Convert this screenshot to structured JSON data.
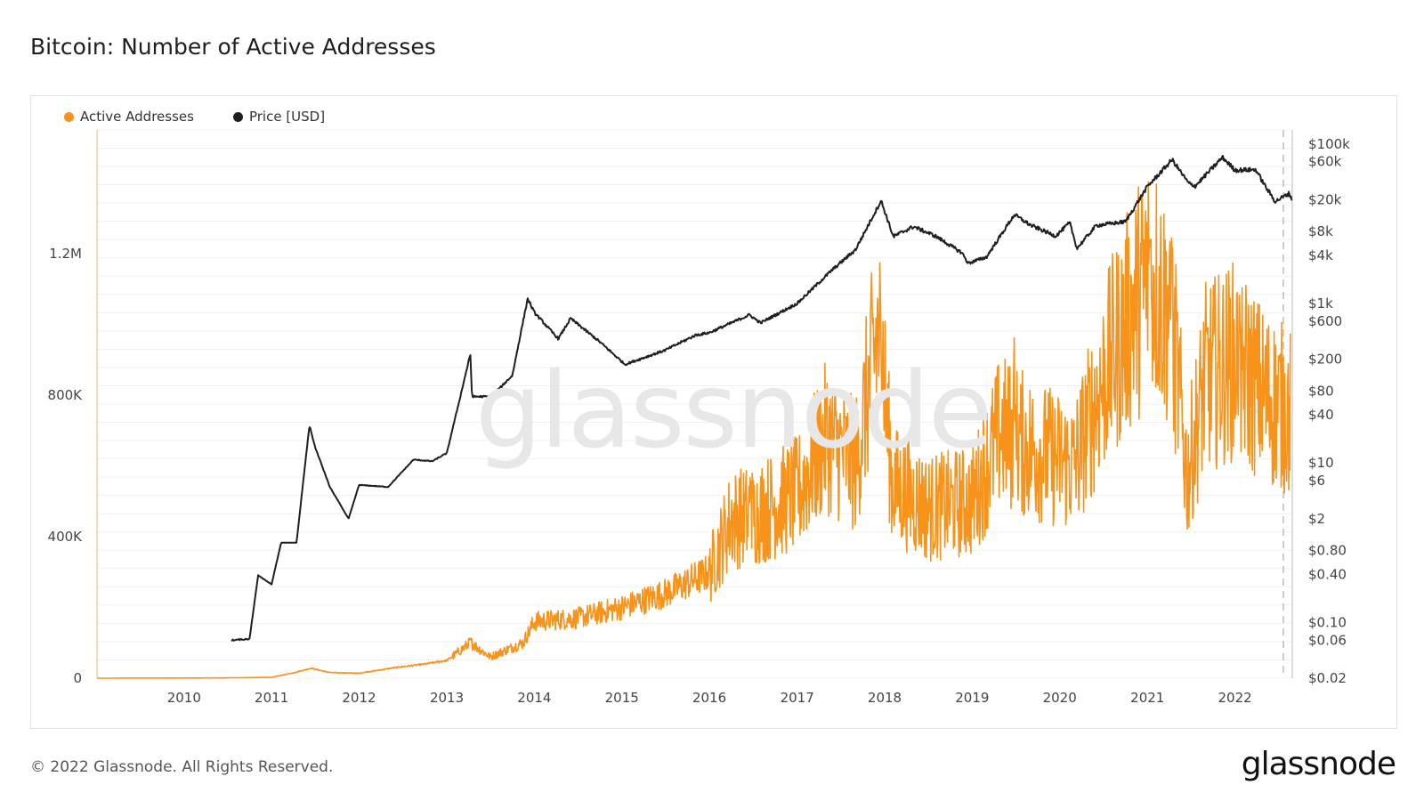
{
  "header": {
    "title": "Bitcoin: Number of Active Addresses"
  },
  "footer": {
    "copyright": "© 2022 Glassnode. All Rights Reserved.",
    "brand": "glassnode"
  },
  "watermark": "glassnode",
  "colors": {
    "active": "#f7931a",
    "price": "#1f1f1f",
    "grid": "#f0f0f0",
    "axis_text": "#444444"
  },
  "chart_data": {
    "type": "line",
    "title": "Bitcoin: Number of Active Addresses",
    "legend": {
      "placement": "top-left",
      "entries": [
        "Active Addresses",
        "Price [USD]"
      ]
    },
    "grid": true,
    "x": {
      "range": [
        "2009-01-03",
        "2022-08-28"
      ],
      "ticks": [
        "2010",
        "2011",
        "2012",
        "2013",
        "2014",
        "2015",
        "2016",
        "2017",
        "2018",
        "2019",
        "2020",
        "2021",
        "2022"
      ]
    },
    "y_left": {
      "range": [
        0,
        1550000
      ],
      "ticks": [
        0,
        400000,
        800000,
        1200000
      ],
      "tick_labels": [
        "0",
        "400K",
        "800K",
        "1.2M"
      ]
    },
    "y_right": {
      "scale": "log",
      "range": [
        0.02,
        150000
      ],
      "ticks": [
        0.02,
        0.06,
        0.1,
        0.4,
        0.8,
        2,
        6,
        10,
        40,
        80,
        200,
        600,
        1000,
        4000,
        8000,
        20000,
        60000,
        100000
      ],
      "tick_labels": [
        "$0.02",
        "$0.06",
        "$0.10",
        "$0.40",
        "$0.80",
        "$2",
        "$6",
        "$10",
        "$40",
        "$80",
        "$200",
        "$600",
        "$1k",
        "$4k",
        "$8k",
        "$20k",
        "$60k",
        "$100k"
      ]
    },
    "series": [
      {
        "name": "Active Addresses",
        "axis": "left",
        "points": [
          [
            "2009-01-03",
            1
          ],
          [
            "2009-07-01",
            300
          ],
          [
            "2010-01-01",
            400
          ],
          [
            "2010-07-01",
            900
          ],
          [
            "2011-01-01",
            2500
          ],
          [
            "2011-04-01",
            15000
          ],
          [
            "2011-06-15",
            28000
          ],
          [
            "2011-09-01",
            16000
          ],
          [
            "2012-01-01",
            14000
          ],
          [
            "2012-06-01",
            30000
          ],
          [
            "2012-10-01",
            40000
          ],
          [
            "2013-01-01",
            50000
          ],
          [
            "2013-04-10",
            100000
          ],
          [
            "2013-07-01",
            60000
          ],
          [
            "2013-11-15",
            100000
          ],
          [
            "2014-01-01",
            160000
          ],
          [
            "2014-07-01",
            170000
          ],
          [
            "2015-01-01",
            200000
          ],
          [
            "2015-07-01",
            240000
          ],
          [
            "2016-01-01",
            300000
          ],
          [
            "2016-04-01",
            450000
          ],
          [
            "2016-07-01",
            460000
          ],
          [
            "2017-01-01",
            520000
          ],
          [
            "2017-05-01",
            680000
          ],
          [
            "2017-09-01",
            600000
          ],
          [
            "2017-12-10",
            1000000
          ],
          [
            "2018-02-01",
            550000
          ],
          [
            "2018-07-01",
            480000
          ],
          [
            "2019-01-01",
            500000
          ],
          [
            "2019-05-01",
            700000
          ],
          [
            "2019-09-01",
            650000
          ],
          [
            "2020-03-01",
            600000
          ],
          [
            "2020-08-01",
            900000
          ],
          [
            "2021-01-15",
            1150000
          ],
          [
            "2021-04-15",
            1000000
          ],
          [
            "2021-06-15",
            570000
          ],
          [
            "2021-09-01",
            850000
          ],
          [
            "2022-01-01",
            900000
          ],
          [
            "2022-05-01",
            800000
          ],
          [
            "2022-08-20",
            750000
          ]
        ],
        "peaks": [
          [
            "2013-04-10",
            120000
          ],
          [
            "2016-06-15",
            650000
          ],
          [
            "2017-12-15",
            1260000
          ],
          [
            "2019-06-25",
            1020000
          ],
          [
            "2021-01-10",
            1330000
          ],
          [
            "2021-04-10",
            1340000
          ],
          [
            "2022-01-20",
            1160000
          ]
        ]
      },
      {
        "name": "Price [USD]",
        "axis": "right",
        "points": [
          [
            "2010-07-17",
            0.06
          ],
          [
            "2010-10-01",
            0.062
          ],
          [
            "2010-11-06",
            0.39
          ],
          [
            "2011-01-01",
            0.3
          ],
          [
            "2011-02-10",
            1.0
          ],
          [
            "2011-04-15",
            1.0
          ],
          [
            "2011-06-08",
            29.6
          ],
          [
            "2011-07-01",
            16
          ],
          [
            "2011-09-01",
            5
          ],
          [
            "2011-11-18",
            2.0
          ],
          [
            "2012-01-01",
            5.3
          ],
          [
            "2012-05-01",
            5.0
          ],
          [
            "2012-08-15",
            11.0
          ],
          [
            "2012-11-01",
            10.5
          ],
          [
            "2013-01-01",
            13.3
          ],
          [
            "2013-04-09",
            230
          ],
          [
            "2013-04-16",
            68
          ],
          [
            "2013-07-06",
            68
          ],
          [
            "2013-10-01",
            125
          ],
          [
            "2013-12-04",
            1150
          ],
          [
            "2014-01-01",
            770
          ],
          [
            "2014-04-11",
            360
          ],
          [
            "2014-06-01",
            650
          ],
          [
            "2014-10-01",
            330
          ],
          [
            "2015-01-14",
            172
          ],
          [
            "2015-07-01",
            260
          ],
          [
            "2015-11-04",
            400
          ],
          [
            "2016-01-01",
            430
          ],
          [
            "2016-06-16",
            720
          ],
          [
            "2016-08-01",
            570
          ],
          [
            "2017-01-01",
            1000
          ],
          [
            "2017-05-25",
            2600
          ],
          [
            "2017-09-01",
            4700
          ],
          [
            "2017-12-17",
            19500
          ],
          [
            "2018-02-06",
            6900
          ],
          [
            "2018-05-01",
            9200
          ],
          [
            "2018-08-01",
            7000
          ],
          [
            "2018-11-20",
            4300
          ],
          [
            "2018-12-15",
            3200
          ],
          [
            "2019-03-01",
            3800
          ],
          [
            "2019-06-26",
            13000
          ],
          [
            "2019-09-01",
            9600
          ],
          [
            "2019-12-15",
            7000
          ],
          [
            "2020-02-12",
            10300
          ],
          [
            "2020-03-13",
            4900
          ],
          [
            "2020-06-01",
            9500
          ],
          [
            "2020-10-01",
            10600
          ],
          [
            "2020-12-31",
            29000
          ],
          [
            "2021-04-14",
            63500
          ],
          [
            "2021-06-22",
            32000
          ],
          [
            "2021-07-20",
            29800
          ],
          [
            "2021-11-10",
            68000
          ],
          [
            "2022-01-01",
            47000
          ],
          [
            "2022-03-29",
            47500
          ],
          [
            "2022-05-12",
            28000
          ],
          [
            "2022-06-18",
            19000
          ],
          [
            "2022-08-15",
            24000
          ],
          [
            "2022-08-28",
            20000
          ]
        ]
      }
    ]
  }
}
